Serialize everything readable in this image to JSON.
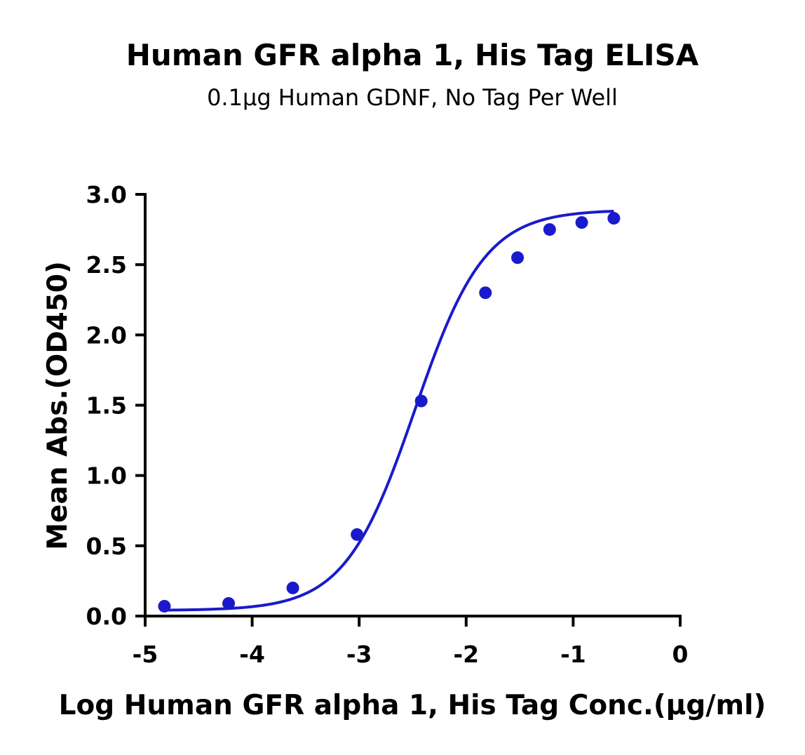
{
  "chart_data": {
    "type": "scatter",
    "title": "Human GFR alpha 1, His Tag ELISA",
    "subtitle": "0.1µg Human GDNF, No Tag Per Well",
    "xlabel": "Log Human GFR alpha 1, His Tag Conc.(µg/ml)",
    "ylabel": "Mean Abs.(OD450)",
    "xlim": [
      -5,
      0
    ],
    "ylim": [
      0.0,
      3.0
    ],
    "x_ticks": [
      -5,
      -4,
      -3,
      -2,
      -1,
      0
    ],
    "x_tick_labels": [
      "-5",
      "-4",
      "-3",
      "-2",
      "-1",
      "0"
    ],
    "y_ticks": [
      0.0,
      0.5,
      1.0,
      1.5,
      2.0,
      2.5,
      3.0
    ],
    "y_tick_labels": [
      "0.0",
      "0.5",
      "1.0",
      "1.5",
      "2.0",
      "2.5",
      "3.0"
    ],
    "grid": false,
    "color": "#1a1acc",
    "series": [
      {
        "x": [
          -4.82,
          -4.22,
          -3.62,
          -3.02,
          -2.42,
          -1.82,
          -1.52,
          -1.22,
          -0.92,
          -0.62
        ],
        "y": [
          0.07,
          0.09,
          0.2,
          0.58,
          1.53,
          2.3,
          2.55,
          2.75,
          2.8,
          2.83
        ]
      }
    ],
    "fit_curve": {
      "model": "4PL",
      "bottom": 0.04,
      "top": 2.89,
      "logEC50": -2.48,
      "hill": 1.33
    }
  }
}
